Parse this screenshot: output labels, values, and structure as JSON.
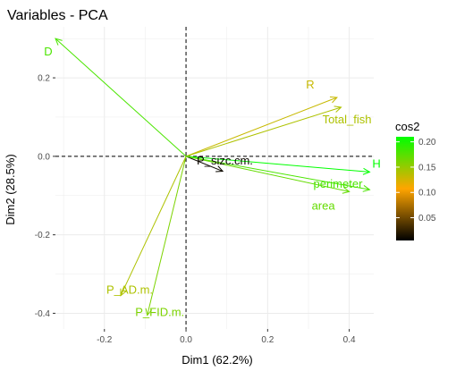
{
  "chart_data": {
    "type": "scatter",
    "subtype": "pca-variable-biplot",
    "title": "Variables - PCA",
    "xlabel": "Dim1 (62.2%)",
    "ylabel": "Dim2 (28.5%)",
    "xlim": [
      -0.32,
      0.46
    ],
    "ylim": [
      -0.44,
      0.33
    ],
    "xticks": [
      -0.2,
      0.0,
      0.2,
      0.4
    ],
    "xtick_labels": [
      "-0.2",
      "0.0",
      "0.2",
      "0.4"
    ],
    "yticks": [
      -0.4,
      -0.2,
      0.0,
      0.2
    ],
    "ytick_labels": [
      "-0.4",
      "-0.2",
      "0.0",
      "0.2"
    ],
    "grid": true,
    "reference_lines": {
      "x": 0,
      "y": 0,
      "style": "dashed"
    },
    "legend": {
      "title": "cos2",
      "position": "right",
      "gradient": [
        "#000000",
        "#FFA500",
        "#00FF00"
      ],
      "range": [
        0.005,
        0.21
      ],
      "ticks": [
        0.05,
        0.1,
        0.15,
        0.2
      ],
      "tick_labels": [
        "0.05",
        "0.10",
        "0.15",
        "0.20"
      ]
    },
    "variables": [
      {
        "name": "D",
        "x": -0.32,
        "y": 0.3,
        "cos2": 0.18
      },
      {
        "name": "R",
        "x": 0.37,
        "y": 0.15,
        "cos2": 0.13
      },
      {
        "name": "Total_fish",
        "x": 0.38,
        "y": 0.125,
        "cos2": 0.14
      },
      {
        "name": "P_sizc.cm.",
        "x": 0.09,
        "y": -0.038,
        "cos2": 0.01
      },
      {
        "name": "H",
        "x": 0.45,
        "y": -0.04,
        "cos2": 0.21
      },
      {
        "name": "perimeter",
        "x": 0.45,
        "y": -0.085,
        "cos2": 0.18
      },
      {
        "name": "area",
        "x": 0.4,
        "y": -0.09,
        "cos2": 0.17
      },
      {
        "name": "P_AD.m.",
        "x": -0.16,
        "y": -0.355,
        "cos2": 0.14
      },
      {
        "name": "P_FID.m.",
        "x": -0.095,
        "y": -0.405,
        "cos2": 0.16
      }
    ]
  }
}
